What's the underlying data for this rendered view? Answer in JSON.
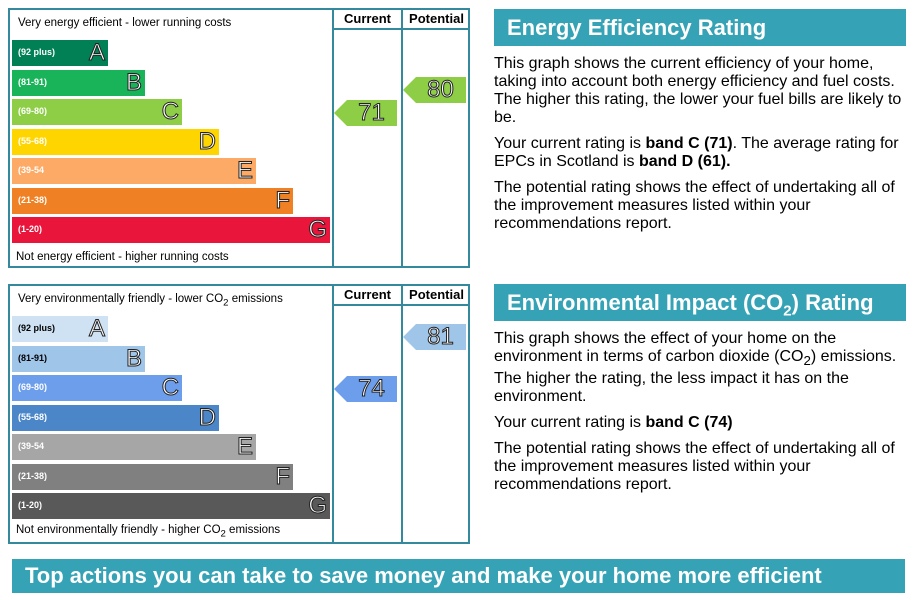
{
  "energy": {
    "caption_top": "Very energy efficient - lower running costs",
    "caption_bottom": "Not energy efficient - higher running costs",
    "header_current": "Current",
    "header_potential": "Potential",
    "bands": [
      {
        "range": "(92 plus)",
        "letter": "A",
        "color": "#008054"
      },
      {
        "range": "(81-91)",
        "letter": "B",
        "color": "#19b459"
      },
      {
        "range": "(69-80)",
        "letter": "C",
        "color": "#8dce46"
      },
      {
        "range": "(55-68)",
        "letter": "D",
        "color": "#ffd500"
      },
      {
        "range": "(39-54",
        "letter": "E",
        "color": "#fcaa65"
      },
      {
        "range": "(21-38)",
        "letter": "F",
        "color": "#ef8023"
      },
      {
        "range": "(1-20)",
        "letter": "G",
        "color": "#e9153b"
      }
    ],
    "current": {
      "value": "71",
      "band": "C",
      "color": "#8dce46"
    },
    "potential": {
      "value": "80",
      "band": "C",
      "color": "#8dce46"
    }
  },
  "environment": {
    "caption_top_pre": "Very environmentally friendly - lower CO",
    "caption_top_sub": "2",
    "caption_top_post": " emissions",
    "caption_bottom_pre": "Not environmentally friendly - higher CO",
    "caption_bottom_sub": "2",
    "caption_bottom_post": " emissions",
    "header_current": "Current",
    "header_potential": "Potential",
    "bands": [
      {
        "range": "(92 plus)",
        "letter": "A",
        "color": "#cfe2f3"
      },
      {
        "range": "(81-91)",
        "letter": "B",
        "color": "#9fc5e8"
      },
      {
        "range": "(69-80)",
        "letter": "C",
        "color": "#6d9eeb"
      },
      {
        "range": "(55-68)",
        "letter": "D",
        "color": "#4a86c8"
      },
      {
        "range": "(39-54",
        "letter": "E",
        "color": "#a6a6a6"
      },
      {
        "range": "(21-38)",
        "letter": "F",
        "color": "#808080"
      },
      {
        "range": "(1-20)",
        "letter": "G",
        "color": "#595959"
      }
    ],
    "current": {
      "value": "74",
      "band": "C",
      "color": "#6d9eeb"
    },
    "potential": {
      "value": "81",
      "band": "B",
      "color": "#9fc5e8"
    }
  },
  "energy_panel": {
    "title": "Energy Efficiency Rating",
    "para1": "This graph shows the current efficiency of your home, taking into account both energy efficiency and fuel costs. The higher this rating, the lower your fuel bills are likely to be.",
    "para2_pre": "Your current rating is ",
    "para2_bold1": "band C (71)",
    "para2_mid": ". The average rating for EPCs in Scotland is ",
    "para2_bold2": "band D (61).",
    "para3": "The potential rating shows the effect of undertaking all of the improvement measures listed within your recommendations report."
  },
  "env_panel": {
    "title_pre": "Environmental Impact (CO",
    "title_sub": "2",
    "title_post": ") Rating",
    "para1_pre": "This graph shows the effect of your home on the environment in terms of carbon dioxide (CO",
    "para1_sub": "2",
    "para1_post": ") emissions. The higher the rating, the less impact it has on the environment.",
    "para2_pre": "Your current rating is ",
    "para2_bold": "band C (74)",
    "para3": "The potential rating shows the effect of undertaking all of the improvement measures listed within your recommendations report."
  },
  "banner": {
    "text": "Top actions you can take to save money and make your home more efficient"
  }
}
